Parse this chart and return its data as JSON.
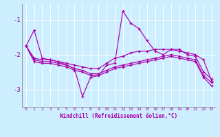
{
  "xlabel": "Windchill (Refroidissement éolien,°C)",
  "bg_color": "#cceeff",
  "grid_color": "#ffffff",
  "line_color": "#aa00aa",
  "xlim": [
    -0.5,
    23.5
  ],
  "ylim": [
    -3.5,
    -0.55
  ],
  "yticks": [
    -3,
    -2,
    -1
  ],
  "xticks": [
    0,
    1,
    2,
    3,
    4,
    5,
    6,
    7,
    8,
    9,
    10,
    11,
    12,
    13,
    14,
    15,
    16,
    17,
    18,
    19,
    20,
    21,
    22,
    23
  ],
  "line1": {
    "x": [
      0,
      1,
      2,
      3,
      4,
      5,
      6,
      7,
      8,
      9,
      10,
      11,
      12,
      13,
      14,
      15,
      16,
      17,
      18,
      19,
      20,
      21,
      22,
      23
    ],
    "y": [
      -1.75,
      -1.3,
      -2.1,
      -2.15,
      -2.2,
      -2.3,
      -2.4,
      -3.2,
      -2.65,
      -2.6,
      -2.3,
      -2.25,
      -0.75,
      -1.1,
      -1.25,
      -1.6,
      -1.9,
      -2.0,
      -1.85,
      -1.85,
      -2.0,
      -2.05,
      -2.5,
      -2.7
    ]
  },
  "line2": {
    "x": [
      0,
      1,
      2,
      3,
      4,
      5,
      6,
      7,
      8,
      9,
      10,
      11,
      12,
      13,
      14,
      15,
      16,
      17,
      18,
      19,
      20,
      21,
      22,
      23
    ],
    "y": [
      -1.75,
      -2.1,
      -2.15,
      -2.15,
      -2.2,
      -2.25,
      -2.3,
      -2.35,
      -2.4,
      -2.4,
      -2.25,
      -2.1,
      -2.05,
      -1.95,
      -1.9,
      -1.9,
      -1.85,
      -1.85,
      -1.85,
      -1.9,
      -1.95,
      -2.0,
      -2.15,
      -2.75
    ]
  },
  "line3": {
    "x": [
      0,
      1,
      2,
      3,
      4,
      5,
      6,
      7,
      8,
      9,
      10,
      11,
      12,
      13,
      14,
      15,
      16,
      17,
      18,
      19,
      20,
      21,
      22,
      23
    ],
    "y": [
      -1.75,
      -2.15,
      -2.2,
      -2.2,
      -2.25,
      -2.3,
      -2.4,
      -2.45,
      -2.55,
      -2.55,
      -2.45,
      -2.35,
      -2.3,
      -2.25,
      -2.2,
      -2.15,
      -2.1,
      -2.05,
      -2.0,
      -2.05,
      -2.1,
      -2.15,
      -2.6,
      -2.8
    ]
  },
  "line4": {
    "x": [
      0,
      1,
      2,
      3,
      4,
      5,
      6,
      7,
      8,
      9,
      10,
      11,
      12,
      13,
      14,
      15,
      16,
      17,
      18,
      19,
      20,
      21,
      22,
      23
    ],
    "y": [
      -1.75,
      -2.2,
      -2.25,
      -2.25,
      -2.3,
      -2.35,
      -2.45,
      -2.5,
      -2.6,
      -2.6,
      -2.5,
      -2.4,
      -2.35,
      -2.3,
      -2.25,
      -2.2,
      -2.15,
      -2.1,
      -2.05,
      -2.1,
      -2.15,
      -2.2,
      -2.65,
      -2.9
    ]
  }
}
